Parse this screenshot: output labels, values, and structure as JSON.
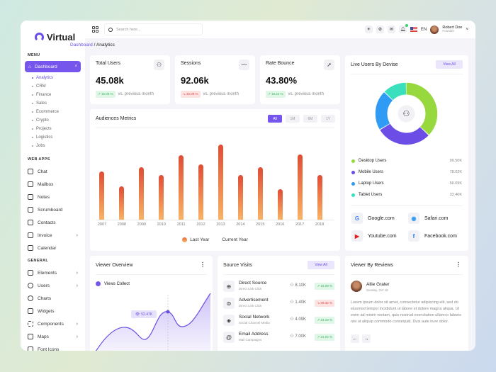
{
  "app": {
    "name": "Virtual"
  },
  "sidebar": {
    "menu_label": "MENU",
    "dashboard": {
      "label": "Dashboard",
      "sub": [
        "Analytics",
        "CRM",
        "Finance",
        "Sales",
        "Ecommerce",
        "Crypto",
        "Projects",
        "Logistics",
        "Jobs"
      ]
    },
    "webapps_label": "WEB APPS",
    "webapps": [
      {
        "label": "Chat",
        "icon": "chat-icon",
        "chevron": false
      },
      {
        "label": "Mailbox",
        "icon": "mail-icon",
        "chevron": false
      },
      {
        "label": "Notes",
        "icon": "notes-icon",
        "chevron": false
      },
      {
        "label": "Scrumboard",
        "icon": "scrumboard-icon",
        "chevron": false
      },
      {
        "label": "Contacts",
        "icon": "contacts-icon",
        "chevron": false
      },
      {
        "label": "Invoice",
        "icon": "invoice-icon",
        "chevron": true
      },
      {
        "label": "Calendar",
        "icon": "calendar-icon",
        "chevron": false
      }
    ],
    "general_label": "GENERAL",
    "general": [
      {
        "label": "Elements",
        "icon": "elements-icon",
        "chevron": true
      },
      {
        "label": "Users",
        "icon": "users-icon",
        "chevron": true
      },
      {
        "label": "Charts",
        "icon": "charts-icon",
        "chevron": false
      },
      {
        "label": "Widgets",
        "icon": "widgets-icon",
        "chevron": false
      },
      {
        "label": "Components",
        "icon": "components-icon",
        "chevron": true
      },
      {
        "label": "Maps",
        "icon": "maps-icon",
        "chevron": true
      },
      {
        "label": "Font Icons",
        "icon": "font-icons-icon",
        "chevron": false
      }
    ]
  },
  "topbar": {
    "search_placeholder": "Search here...",
    "lang": "EN",
    "user": {
      "name": "Robert Doe",
      "role": "Founder"
    }
  },
  "breadcrumb": {
    "parent": "Dashboard",
    "sep": " / ",
    "current": "Analytics"
  },
  "stats": [
    {
      "title": "Total Users",
      "value": "45.08k",
      "change": "16.09 %",
      "trend": "up",
      "note": "vs. previous month",
      "icon": "users-icon"
    },
    {
      "title": "Sessions",
      "value": "92.06k",
      "change": "32.09 %",
      "trend": "down",
      "note": "vs. previous month",
      "icon": "trend-icon"
    },
    {
      "title": "Rate Bounce",
      "value": "43.80%",
      "change": "16.24 %",
      "trend": "up",
      "note": "vs. previous month",
      "icon": "send-icon"
    }
  ],
  "audience": {
    "title": "Audiences Metrics",
    "filters": [
      "All",
      "1M",
      "6M",
      "1Y"
    ],
    "active_filter": "All",
    "legend": [
      "Last Year",
      "Current Year"
    ]
  },
  "chart_data": [
    {
      "type": "bar",
      "title": "Audiences Metrics",
      "categories": [
        "2007",
        "2008",
        "2009",
        "2010",
        "2011",
        "2012",
        "2013",
        "2014",
        "2015",
        "2016",
        "2017",
        "2018"
      ],
      "series": [
        {
          "name": "Last Year",
          "values": [
            58,
            40,
            63,
            54,
            78,
            67,
            91,
            54,
            63,
            37,
            79,
            54
          ]
        },
        {
          "name": "Current Year",
          "values": []
        }
      ],
      "ylim": [
        0,
        100
      ],
      "legend_position": "bottom"
    },
    {
      "type": "pie",
      "title": "Live Users By Devise",
      "categories": [
        "Desktop Users",
        "Mobile Users",
        "Laptop Users",
        "Tablet Users"
      ],
      "values": [
        99.5,
        78.02,
        56.09,
        33.4
      ],
      "units": "K"
    },
    {
      "type": "area",
      "title": "Viewer Overview",
      "series": [
        {
          "name": "Views Collect"
        }
      ],
      "annotation": "52.47K"
    }
  ],
  "live_users": {
    "title": "Live Users By Devise",
    "view_all": "View All",
    "items": [
      {
        "label": "Desktop Users",
        "value": "99.50K",
        "color": "#97d83f"
      },
      {
        "label": "Mobile Users",
        "value": "78.02K",
        "color": "#6c4de6"
      },
      {
        "label": "Laptop Users",
        "value": "56.09K",
        "color": "#2f9bf5"
      },
      {
        "label": "Tablet Users",
        "value": "33.40K",
        "color": "#3ae0bd"
      }
    ],
    "sites": [
      "Google.com",
      "Safari.com",
      "Youtube.com",
      "Facebook.com"
    ]
  },
  "viewer": {
    "title": "Viewer Overview",
    "legend": "Views Collect",
    "tooltip": "52.47K"
  },
  "sources": {
    "title": "Source Visits",
    "view_all": "View All",
    "rows": [
      {
        "name": "Direct Source",
        "sub": "Direct Link Click",
        "count": "8.10K",
        "change": "16.09 %",
        "trend": "up"
      },
      {
        "name": "Advertisement",
        "sub": "Direct Link Click",
        "count": "1.40K",
        "change": "09.32 %",
        "trend": "down"
      },
      {
        "name": "Social Network",
        "sub": "Social Channel Media",
        "count": "4.09K",
        "change": "24.19 %",
        "trend": "up"
      },
      {
        "name": "Email Address",
        "sub": "Mail Campaigns",
        "count": "7.00K",
        "change": "21.04 %",
        "trend": "up"
      }
    ]
  },
  "reviews": {
    "title": "Viewer By Reviews",
    "name": "Allie Grater",
    "date": "Sunday, Oct 19",
    "text": "Lorem ipsum dolor sit amet, consectetur adipiscing elit, sed do eiusmod tempor incididunt ut labore et dolore magna aliqua. Ut enim ad minim veniam, quis nostrud exercitation ullamco laboris nisi ut aliquip commodo consequat. Duis aute irure dolor."
  }
}
